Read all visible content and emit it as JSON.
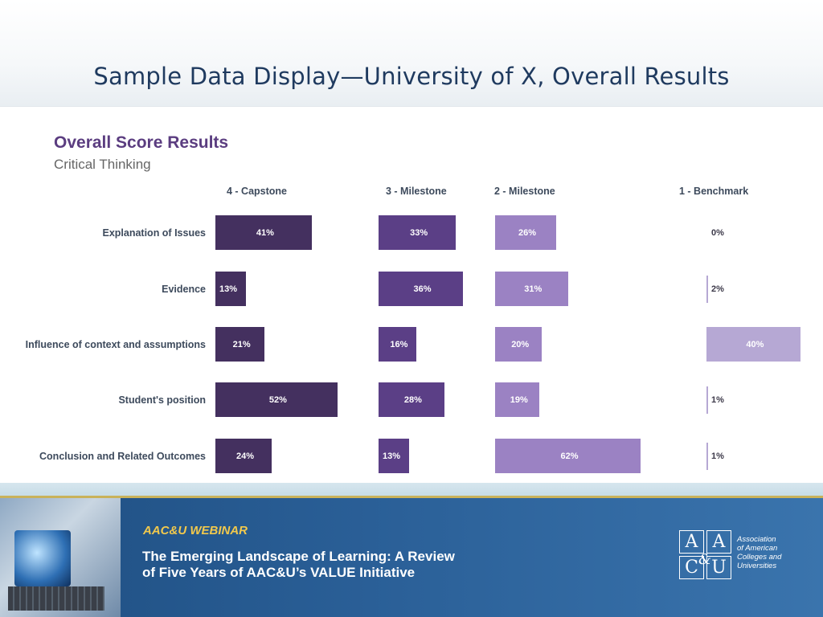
{
  "slide": {
    "title": "Sample Data Display—University of X, Overall Results"
  },
  "chart_data": {
    "type": "bar",
    "title": "Overall Score Results",
    "subtitle": "Critical Thinking",
    "categories": [
      "Explanation of Issues",
      "Evidence",
      "Influence of context and assumptions",
      "Student's position",
      "Conclusion and Related Outcomes"
    ],
    "series": [
      {
        "name": "4 - Capstone",
        "values": [
          41,
          13,
          21,
          52,
          24
        ],
        "labels": [
          "41%",
          "13%",
          "21%",
          "52%",
          "24%"
        ],
        "color": "#44305f"
      },
      {
        "name": "3 - Milestone",
        "values": [
          33,
          36,
          16,
          28,
          13
        ],
        "labels": [
          "33%",
          "36%",
          "16%",
          "28%",
          "13%"
        ],
        "color": "#5b3f86"
      },
      {
        "name": "2 - Milestone",
        "values": [
          26,
          31,
          20,
          19,
          62
        ],
        "labels": [
          "26%",
          "31%",
          "20%",
          "19%",
          "62%"
        ],
        "color": "#9b82c3"
      },
      {
        "name": "1 - Benchmark",
        "values": [
          0,
          2,
          40,
          1,
          1
        ],
        "labels": [
          "0%",
          "2%",
          "40%",
          "1%",
          "1%"
        ],
        "color": "#b6a8d4"
      }
    ],
    "unit": "%",
    "legend": "top",
    "grid": false
  },
  "footer": {
    "tag": "AAC&U WEBINAR",
    "title_line1": "The Emerging Landscape of Learning: A Review",
    "title_line2": "of Five Years of AAC&U’s VALUE Initiative",
    "logo_letters": [
      "A",
      "A",
      "C",
      "U"
    ],
    "logo_ampersand": "&",
    "org_line1": "Association",
    "org_line2": "of American",
    "org_line3": "Colleges and",
    "org_line4": "Universities"
  },
  "colors": {
    "title": "#1f3a5f",
    "chart_title": "#5b3d80",
    "footer_bg": "#2a5f97",
    "footer_tag": "#f2c94c"
  }
}
